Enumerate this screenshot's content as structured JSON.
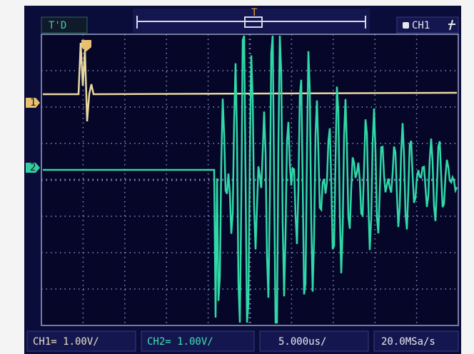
{
  "top_bar": {
    "mode": "T'D",
    "channel": "CH1"
  },
  "markers": {
    "trigger": "T",
    "ch1": "1",
    "ch2": "2"
  },
  "bottom_bar": {
    "ch1_scale": "CH1= 1.00V/",
    "ch2_scale": "CH2= 1.00V/",
    "time_base": "5.000us/",
    "sample_rate": "20.0MSa/s"
  }
}
